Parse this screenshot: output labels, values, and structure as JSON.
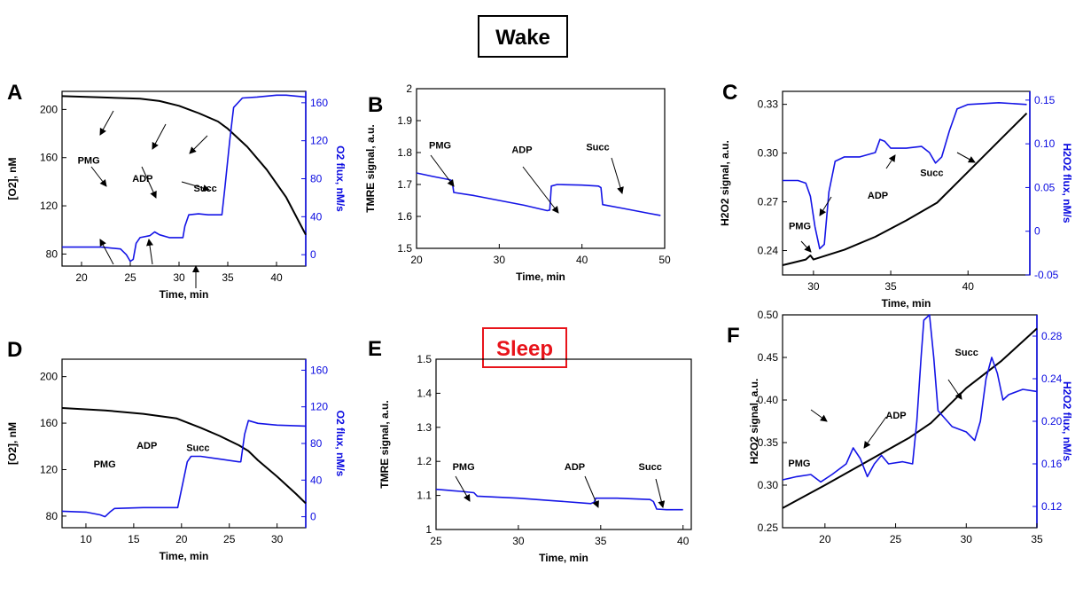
{
  "headers": {
    "wake": {
      "text": "Wake",
      "color": "#000000"
    },
    "sleep": {
      "text": "Sleep",
      "color": "#e8141b"
    }
  },
  "colors": {
    "black_series": "#000000",
    "blue_series": "#1414e6",
    "blue_axis": "#0a0ae0"
  },
  "chart_data": [
    {
      "panel": "A",
      "type": "line",
      "xlabel": "Time, min",
      "ylabel": "[O2], nM",
      "ylabel2": "O2 flux, nM/s",
      "xlim": [
        18,
        43
      ],
      "ylim": [
        70,
        215
      ],
      "y2lim": [
        -12,
        172
      ],
      "xticks": [
        20,
        25,
        30,
        35,
        40
      ],
      "yticks": [
        80,
        120,
        160,
        200
      ],
      "y2ticks": [
        0,
        40,
        80,
        120,
        160
      ],
      "series": [
        {
          "axis": "left",
          "color": "black",
          "points": [
            [
              18,
              211
            ],
            [
              22,
              210
            ],
            [
              26,
              209
            ],
            [
              28,
              207
            ],
            [
              30,
              203
            ],
            [
              32,
              197
            ],
            [
              34,
              190
            ],
            [
              35,
              184
            ],
            [
              37,
              169
            ],
            [
              39,
              150
            ],
            [
              41,
              127
            ],
            [
              43,
              96
            ]
          ]
        },
        {
          "axis": "right",
          "color": "blue",
          "points": [
            [
              18,
              8
            ],
            [
              22,
              8
            ],
            [
              24,
              6
            ],
            [
              24.6,
              0
            ],
            [
              25,
              -7
            ],
            [
              25.3,
              -5
            ],
            [
              25.6,
              12
            ],
            [
              26,
              18
            ],
            [
              27,
              20
            ],
            [
              27.5,
              24
            ],
            [
              28,
              21
            ],
            [
              29,
              18
            ],
            [
              30,
              18
            ],
            [
              30.4,
              18
            ],
            [
              30.6,
              30
            ],
            [
              31,
              42
            ],
            [
              32,
              43
            ],
            [
              33,
              42
            ],
            [
              34,
              42
            ],
            [
              34.4,
              42
            ],
            [
              34.7,
              70
            ],
            [
              35.2,
              120
            ],
            [
              35.6,
              155
            ],
            [
              36.5,
              165
            ],
            [
              38,
              166
            ],
            [
              40,
              168
            ],
            [
              41,
              168
            ],
            [
              43,
              166
            ]
          ]
        }
      ],
      "annotations": [
        {
          "text": "PMG",
          "x": 19.6,
          "y": 155
        },
        {
          "text": "ADP",
          "x": 25.2,
          "y": 140
        },
        {
          "text": "Succ",
          "x": 31.5,
          "y": 132
        }
      ]
    },
    {
      "panel": "B",
      "type": "line",
      "xlabel": "Time, min",
      "ylabel": "TMRE signal, a.u.",
      "xlim": [
        20,
        50
      ],
      "ylim": [
        1.5,
        2.0
      ],
      "xticks": [
        20,
        30,
        40,
        50
      ],
      "yticks": [
        1.5,
        1.6,
        1.7,
        1.8,
        1.9,
        2.0
      ],
      "series": [
        {
          "axis": "left",
          "color": "blue",
          "points": [
            [
              20,
              1.736
            ],
            [
              22,
              1.725
            ],
            [
              24,
              1.715
            ],
            [
              24.3,
              1.712
            ],
            [
              24.5,
              1.675
            ],
            [
              27,
              1.665
            ],
            [
              30,
              1.65
            ],
            [
              33,
              1.635
            ],
            [
              35.8,
              1.618
            ],
            [
              36.1,
              1.62
            ],
            [
              36.3,
              1.695
            ],
            [
              37,
              1.7
            ],
            [
              40,
              1.698
            ],
            [
              42,
              1.695
            ],
            [
              42.3,
              1.69
            ],
            [
              42.5,
              1.637
            ],
            [
              45,
              1.625
            ],
            [
              48,
              1.61
            ],
            [
              49.5,
              1.603
            ]
          ]
        }
      ],
      "annotations": [
        {
          "text": "PMG",
          "x": 21.5,
          "y": 1.812
        },
        {
          "text": "ADP",
          "x": 31.5,
          "y": 1.798
        },
        {
          "text": "Succ",
          "x": 40.5,
          "y": 1.807
        }
      ]
    },
    {
      "panel": "C",
      "type": "line",
      "xlabel": "Time, min",
      "ylabel": "H2O2 signal, a.u.",
      "ylabel2": "H2O2 flux, nM/s",
      "xlim": [
        28,
        44
      ],
      "ylim": [
        0.225,
        0.338
      ],
      "y2lim": [
        -0.05,
        0.16
      ],
      "xticks": [
        30,
        35,
        40
      ],
      "yticks": [
        0.24,
        0.27,
        0.3,
        0.33
      ],
      "y2ticks": [
        -0.05,
        0.0,
        0.05,
        0.1,
        0.15
      ],
      "series": [
        {
          "axis": "left",
          "color": "black",
          "points": [
            [
              28,
              0.231
            ],
            [
              29.5,
              0.2345
            ],
            [
              29.8,
              0.237
            ],
            [
              30,
              0.2345
            ],
            [
              32,
              0.2405
            ],
            [
              34,
              0.2485
            ],
            [
              36,
              0.2585
            ],
            [
              38,
              0.2695
            ],
            [
              40,
              0.2885
            ],
            [
              42,
              0.3075
            ],
            [
              43.8,
              0.3245
            ]
          ]
        },
        {
          "axis": "right",
          "color": "blue",
          "points": [
            [
              28,
              0.058
            ],
            [
              29,
              0.058
            ],
            [
              29.5,
              0.055
            ],
            [
              29.8,
              0.04
            ],
            [
              30.1,
              0.005
            ],
            [
              30.4,
              -0.02
            ],
            [
              30.7,
              -0.015
            ],
            [
              31,
              0.045
            ],
            [
              31.4,
              0.08
            ],
            [
              32,
              0.085
            ],
            [
              33,
              0.085
            ],
            [
              34,
              0.09
            ],
            [
              34.3,
              0.105
            ],
            [
              34.6,
              0.103
            ],
            [
              35,
              0.095
            ],
            [
              36,
              0.095
            ],
            [
              37,
              0.097
            ],
            [
              37.5,
              0.09
            ],
            [
              37.9,
              0.078
            ],
            [
              38.3,
              0.085
            ],
            [
              38.8,
              0.115
            ],
            [
              39.3,
              0.14
            ],
            [
              40,
              0.145
            ],
            [
              42,
              0.147
            ],
            [
              43.8,
              0.145
            ]
          ]
        }
      ],
      "annotations": [
        {
          "text": "PMG",
          "x": 28.4,
          "y": 0.253
        },
        {
          "text": "ADP",
          "x": 33.5,
          "y": 0.272
        },
        {
          "text": "Succ",
          "x": 36.9,
          "y": 0.286
        }
      ]
    },
    {
      "panel": "D",
      "type": "line",
      "xlabel": "Time, min",
      "ylabel": "[O2], nM",
      "ylabel2": "O2 flux, nM/s",
      "xlim": [
        7.5,
        33
      ],
      "ylim": [
        70,
        215
      ],
      "y2lim": [
        -12,
        172
      ],
      "xticks": [
        10,
        15,
        20,
        25,
        30
      ],
      "yticks": [
        80,
        120,
        160,
        200
      ],
      "y2ticks": [
        0,
        40,
        80,
        120,
        160
      ],
      "series": [
        {
          "axis": "left",
          "color": "black",
          "points": [
            [
              7.5,
              173
            ],
            [
              12,
              171
            ],
            [
              16,
              168
            ],
            [
              19.5,
              164
            ],
            [
              22,
              156
            ],
            [
              24,
              149
            ],
            [
              26,
              141
            ],
            [
              27,
              136
            ],
            [
              28,
              128
            ],
            [
              30,
              114
            ],
            [
              32,
              99
            ],
            [
              33,
              91
            ]
          ]
        },
        {
          "axis": "right",
          "color": "blue",
          "points": [
            [
              7.5,
              6
            ],
            [
              10,
              5
            ],
            [
              11.5,
              2
            ],
            [
              12,
              0
            ],
            [
              12.5,
              5
            ],
            [
              13,
              9
            ],
            [
              16,
              10
            ],
            [
              19,
              10
            ],
            [
              19.6,
              10
            ],
            [
              20.2,
              40
            ],
            [
              20.6,
              60
            ],
            [
              21,
              66
            ],
            [
              22,
              66
            ],
            [
              24,
              63
            ],
            [
              26,
              60
            ],
            [
              26.2,
              60
            ],
            [
              26.6,
              90
            ],
            [
              27,
              105
            ],
            [
              28,
              102
            ],
            [
              30,
              100
            ],
            [
              33,
              99
            ]
          ]
        }
      ],
      "annotations": [
        {
          "text": "PMG",
          "x": 10.8,
          "y": 122
        },
        {
          "text": "ADP",
          "x": 15.3,
          "y": 138
        },
        {
          "text": "Succ",
          "x": 20.5,
          "y": 136
        }
      ]
    },
    {
      "panel": "E",
      "type": "line",
      "xlabel": "Time, min",
      "ylabel": "TMRE signal, a.u.",
      "xlim": [
        25,
        40.5
      ],
      "ylim": [
        1.0,
        1.5
      ],
      "xticks": [
        25,
        30,
        35,
        40
      ],
      "yticks": [
        1.0,
        1.1,
        1.2,
        1.3,
        1.4,
        1.5
      ],
      "series": [
        {
          "axis": "left",
          "color": "blue",
          "points": [
            [
              25,
              1.118
            ],
            [
              26.5,
              1.112
            ],
            [
              27.3,
              1.108
            ],
            [
              27.5,
              1.098
            ],
            [
              30,
              1.092
            ],
            [
              32,
              1.085
            ],
            [
              34.4,
              1.076
            ],
            [
              34.6,
              1.08
            ],
            [
              34.7,
              1.092
            ],
            [
              36,
              1.092
            ],
            [
              38,
              1.088
            ],
            [
              38.2,
              1.082
            ],
            [
              38.4,
              1.06
            ],
            [
              39,
              1.058
            ],
            [
              40,
              1.058
            ]
          ]
        }
      ],
      "annotations": [
        {
          "text": "PMG",
          "x": 26.0,
          "y": 1.175
        },
        {
          "text": "ADP",
          "x": 32.8,
          "y": 1.175
        },
        {
          "text": "Succ",
          "x": 37.3,
          "y": 1.175
        }
      ]
    },
    {
      "panel": "F",
      "type": "line",
      "xlabel": "",
      "ylabel": "H2O2 signal, a.u.",
      "ylabel2": "H2O2 flux, nM/s",
      "xlim": [
        17,
        35
      ],
      "ylim": [
        0.25,
        0.5
      ],
      "y2lim": [
        0.1,
        0.3
      ],
      "xticks": [
        20,
        25,
        30,
        35
      ],
      "yticks": [
        0.25,
        0.3,
        0.35,
        0.4,
        0.45,
        0.5
      ],
      "y2ticks": [
        0.12,
        0.16,
        0.2,
        0.24,
        0.28
      ],
      "series": [
        {
          "axis": "left",
          "color": "black",
          "points": [
            [
              17,
              0.273
            ],
            [
              20,
              0.3
            ],
            [
              23,
              0.328
            ],
            [
              26,
              0.356
            ],
            [
              27.5,
              0.373
            ],
            [
              30,
              0.414
            ],
            [
              32.5,
              0.446
            ],
            [
              35,
              0.484
            ]
          ]
        },
        {
          "axis": "right",
          "color": "blue",
          "points": [
            [
              17,
              0.145
            ],
            [
              18,
              0.148
            ],
            [
              19,
              0.15
            ],
            [
              19.7,
              0.143
            ],
            [
              20.5,
              0.15
            ],
            [
              21,
              0.155
            ],
            [
              21.5,
              0.16
            ],
            [
              22,
              0.175
            ],
            [
              22.5,
              0.165
            ],
            [
              23,
              0.148
            ],
            [
              23.5,
              0.16
            ],
            [
              24,
              0.168
            ],
            [
              24.5,
              0.16
            ],
            [
              25.5,
              0.162
            ],
            [
              26.2,
              0.16
            ],
            [
              26.5,
              0.2
            ],
            [
              26.8,
              0.26
            ],
            [
              27,
              0.295
            ],
            [
              27.4,
              0.3
            ],
            [
              27.7,
              0.26
            ],
            [
              28,
              0.21
            ],
            [
              29,
              0.195
            ],
            [
              30,
              0.19
            ],
            [
              30.6,
              0.182
            ],
            [
              31,
              0.2
            ],
            [
              31.4,
              0.24
            ],
            [
              31.8,
              0.26
            ],
            [
              32.2,
              0.245
            ],
            [
              32.6,
              0.22
            ],
            [
              33,
              0.225
            ],
            [
              34,
              0.23
            ],
            [
              35,
              0.228
            ]
          ]
        }
      ],
      "annotations": [
        {
          "text": "PMG",
          "x": 17.4,
          "y": 0.322
        },
        {
          "text": "ADP",
          "x": 24.3,
          "y": 0.378
        },
        {
          "text": "Succ",
          "x": 29.2,
          "y": 0.452
        }
      ]
    }
  ]
}
